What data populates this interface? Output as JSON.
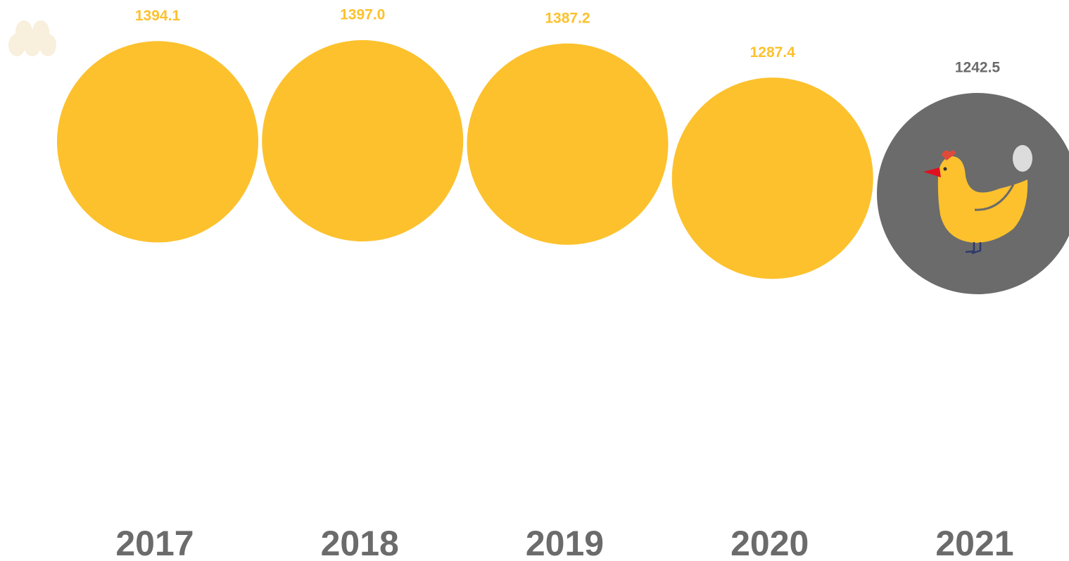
{
  "chart_data": {
    "type": "bubble",
    "categories": [
      "2017",
      "2018",
      "2019",
      "2020",
      "2021"
    ],
    "values": [
      1394.1,
      1397.0,
      1387.2,
      1287.4,
      1242.5
    ],
    "value_labels": [
      "1394.1",
      "1397.0",
      "1387.2",
      "1287.4",
      "1242.5"
    ],
    "colors": [
      "#fcc12d",
      "#fcc12d",
      "#fcc12d",
      "#fcc12d",
      "#6b6b6b"
    ]
  }
}
